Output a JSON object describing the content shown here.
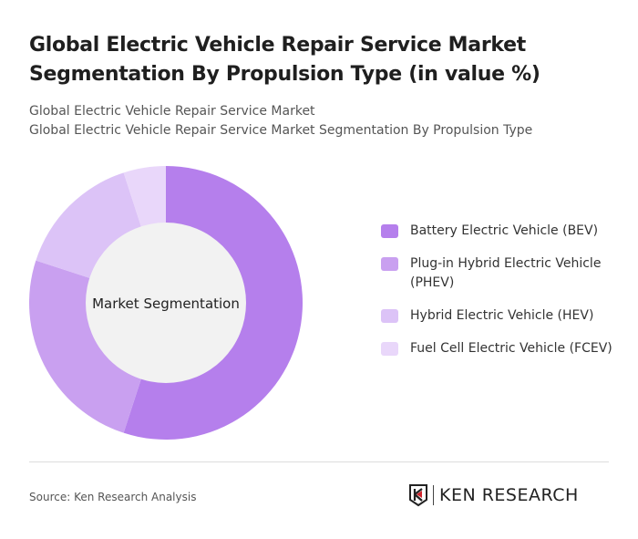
{
  "header": {
    "title": "Global Electric Vehicle Repair Service Market Segmentation By Propulsion Type (in value %)",
    "subtitle1": "Global Electric Vehicle Repair Service Market",
    "subtitle2": "Global Electric Vehicle Repair Service Market Segmentation By Propulsion Type"
  },
  "chart_data": {
    "type": "pie",
    "variant": "donut",
    "center_label": "Market Segmentation",
    "categories": [
      "Battery Electric Vehicle (BEV)",
      "Plug-in Hybrid Electric Vehicle (PHEV)",
      "Hybrid Electric Vehicle (HEV)",
      "Fuel Cell Electric Vehicle (FCEV)"
    ],
    "values": [
      55,
      25,
      15,
      5
    ],
    "colors": [
      "#b57fec",
      "#c9a0f0",
      "#dcc3f7",
      "#e9d7fa"
    ],
    "legend_position": "right"
  },
  "footer": {
    "source": "Source: Ken Research Analysis",
    "logo": "KEN RESEARCH"
  }
}
